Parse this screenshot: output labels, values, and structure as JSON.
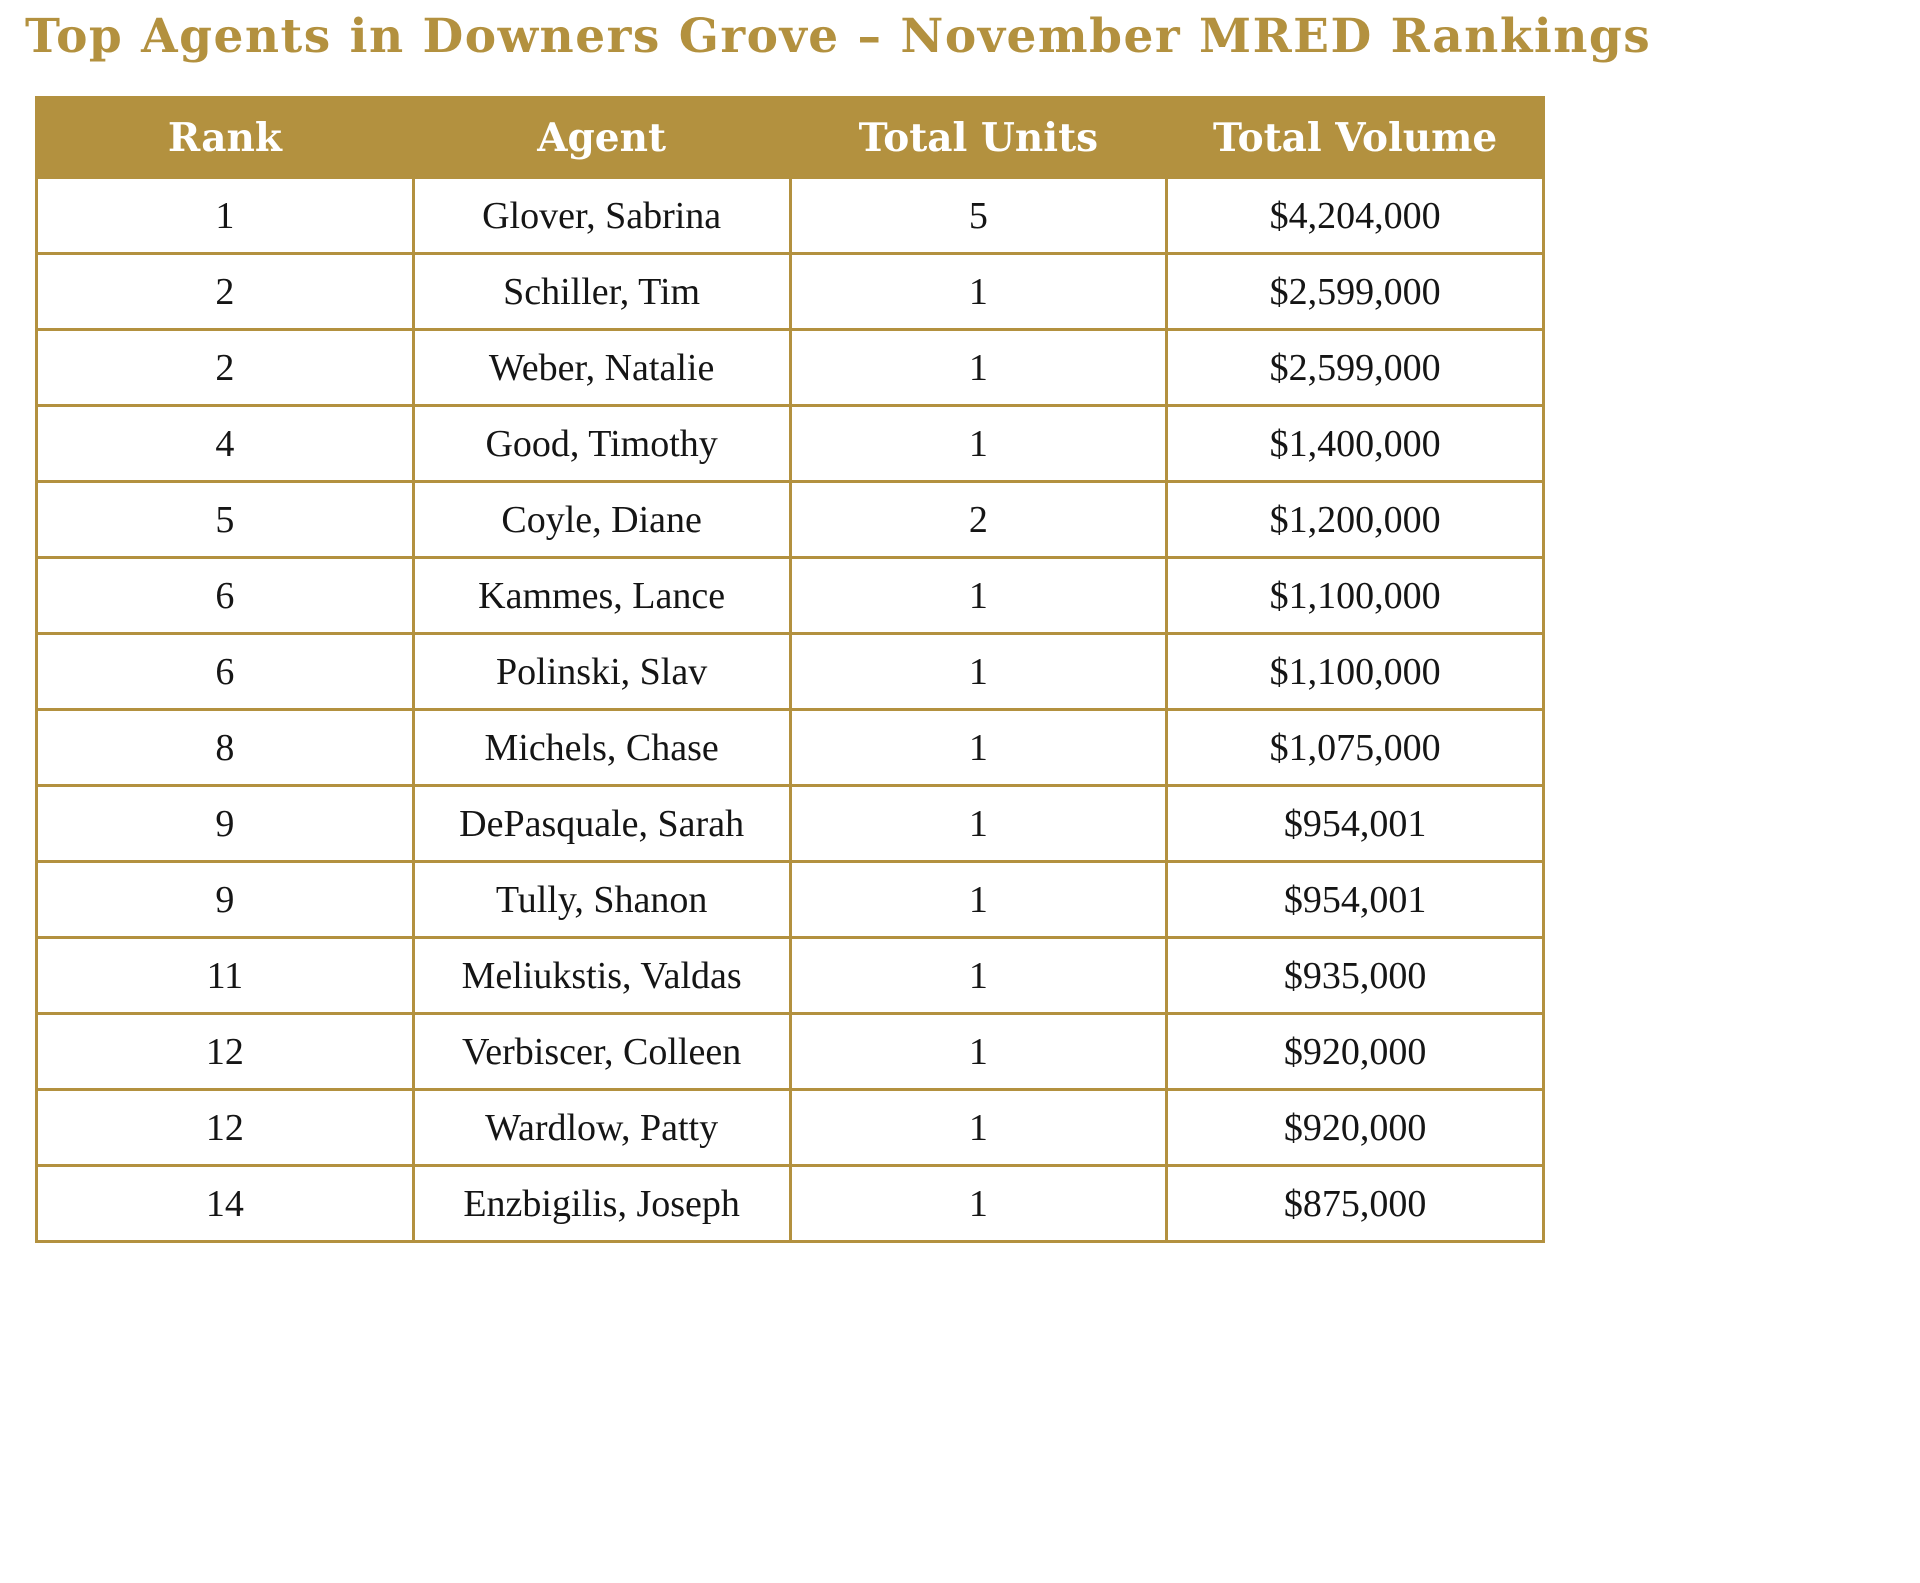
{
  "page": {
    "title": "Top Agents in Downers Grove – November MRED Rankings"
  },
  "colors": {
    "gold": "#b3913f",
    "header_text": "#ffffff",
    "cell_text": "#151515",
    "background": "#ffffff"
  },
  "table": {
    "columns": [
      "Rank",
      "Agent",
      "Total Units",
      "Total Volume"
    ],
    "rows": [
      {
        "rank": "1",
        "agent": "Glover, Sabrina",
        "units": "5",
        "volume": "$4,204,000"
      },
      {
        "rank": "2",
        "agent": "Schiller, Tim",
        "units": "1",
        "volume": "$2,599,000"
      },
      {
        "rank": "2",
        "agent": "Weber, Natalie",
        "units": "1",
        "volume": "$2,599,000"
      },
      {
        "rank": "4",
        "agent": "Good, Timothy",
        "units": "1",
        "volume": "$1,400,000"
      },
      {
        "rank": "5",
        "agent": "Coyle, Diane",
        "units": "2",
        "volume": "$1,200,000"
      },
      {
        "rank": "6",
        "agent": "Kammes, Lance",
        "units": "1",
        "volume": "$1,100,000"
      },
      {
        "rank": "6",
        "agent": "Polinski, Slav",
        "units": "1",
        "volume": "$1,100,000"
      },
      {
        "rank": "8",
        "agent": "Michels, Chase",
        "units": "1",
        "volume": "$1,075,000"
      },
      {
        "rank": "9",
        "agent": "DePasquale, Sarah",
        "units": "1",
        "volume": "$954,001"
      },
      {
        "rank": "9",
        "agent": "Tully, Shanon",
        "units": "1",
        "volume": "$954,001"
      },
      {
        "rank": "11",
        "agent": "Meliukstis, Valdas",
        "units": "1",
        "volume": "$935,000"
      },
      {
        "rank": "12",
        "agent": "Verbiscer, Colleen",
        "units": "1",
        "volume": "$920,000"
      },
      {
        "rank": "12",
        "agent": "Wardlow, Patty",
        "units": "1",
        "volume": "$920,000"
      },
      {
        "rank": "14",
        "agent": "Enzbigilis, Joseph",
        "units": "1",
        "volume": "$875,000"
      }
    ]
  },
  "chart_data": {
    "type": "table",
    "title": "Top Agents in Downers Grove – November MRED Rankings",
    "columns": [
      "Rank",
      "Agent",
      "Total Units",
      "Total Volume"
    ],
    "rows": [
      [
        1,
        "Glover, Sabrina",
        5,
        4204000
      ],
      [
        2,
        "Schiller, Tim",
        1,
        2599000
      ],
      [
        2,
        "Weber, Natalie",
        1,
        2599000
      ],
      [
        4,
        "Good, Timothy",
        1,
        1400000
      ],
      [
        5,
        "Coyle, Diane",
        2,
        1200000
      ],
      [
        6,
        "Kammes, Lance",
        1,
        1100000
      ],
      [
        6,
        "Polinski, Slav",
        1,
        1100000
      ],
      [
        8,
        "Michels, Chase",
        1,
        1075000
      ],
      [
        9,
        "DePasquale, Sarah",
        1,
        954001
      ],
      [
        9,
        "Tully, Shanon",
        1,
        954001
      ],
      [
        11,
        "Meliukstis, Valdas",
        1,
        935000
      ],
      [
        12,
        "Verbiscer, Colleen",
        1,
        920000
      ],
      [
        12,
        "Wardlow, Patty",
        1,
        920000
      ],
      [
        14,
        "Enzbigilis, Joseph",
        1,
        875000
      ]
    ]
  }
}
